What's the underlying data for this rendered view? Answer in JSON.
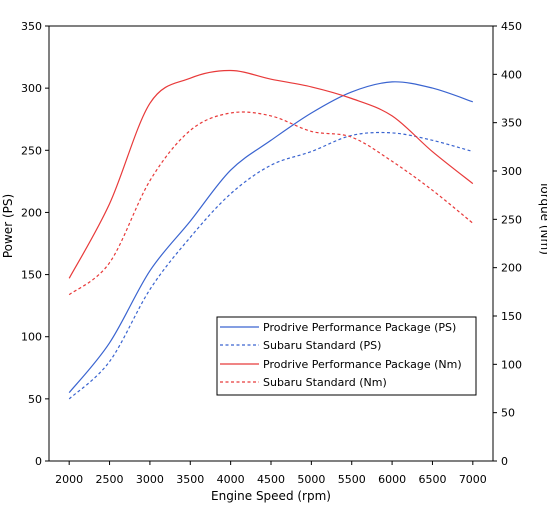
{
  "chart_data": {
    "type": "line",
    "title": "",
    "xlabel": "Engine Speed (rpm)",
    "ylabel_left": "Power (PS)",
    "ylabel_right": "Torque (Nm)",
    "xlim": [
      1750,
      7250
    ],
    "ylim_left": [
      0,
      350
    ],
    "ylim_right": [
      0,
      450
    ],
    "x_ticks": [
      2000,
      2500,
      3000,
      3500,
      4000,
      4500,
      5000,
      5500,
      6000,
      6500,
      7000
    ],
    "y_ticks_left": [
      0,
      50,
      100,
      150,
      200,
      250,
      300,
      350
    ],
    "y_ticks_right": [
      0,
      50,
      100,
      150,
      200,
      250,
      300,
      350,
      400,
      450
    ],
    "grid": false,
    "legend_position": "bottom-right",
    "series": [
      {
        "name": "Prodrive Performance Package (PS)",
        "axis": "left",
        "color": "#3a64d0",
        "dash": "solid",
        "x": [
          2000,
          2500,
          3000,
          3500,
          4000,
          4500,
          5000,
          5500,
          6000,
          6500,
          7000
        ],
        "values": [
          55,
          95,
          153,
          193,
          234,
          258,
          280,
          297,
          305,
          300,
          289
        ]
      },
      {
        "name": "Subaru Standard (PS)",
        "axis": "left",
        "color": "#3a64d0",
        "dash": "dashed",
        "x": [
          2000,
          2500,
          3000,
          3500,
          4000,
          4500,
          5000,
          5500,
          6000,
          6500,
          7000
        ],
        "values": [
          50,
          80,
          138,
          180,
          215,
          238,
          249,
          262,
          264,
          258,
          249
        ]
      },
      {
        "name": "Prodrive Performance Package (Nm)",
        "axis": "right",
        "color": "#e83a3a",
        "dash": "solid",
        "x": [
          2000,
          2500,
          3000,
          3500,
          4000,
          4500,
          5000,
          5500,
          6000,
          6500,
          7000
        ],
        "values": [
          189,
          266,
          370,
          396,
          404,
          395,
          387,
          375,
          357,
          320,
          287
        ]
      },
      {
        "name": "Subaru Standard (Nm)",
        "axis": "right",
        "color": "#e83a3a",
        "dash": "dashed",
        "x": [
          2000,
          2500,
          3000,
          3500,
          4000,
          4500,
          5000,
          5500,
          6000,
          6500,
          7000
        ],
        "values": [
          172,
          205,
          290,
          342,
          360,
          357,
          341,
          335,
          310,
          280,
          246
        ]
      }
    ]
  }
}
